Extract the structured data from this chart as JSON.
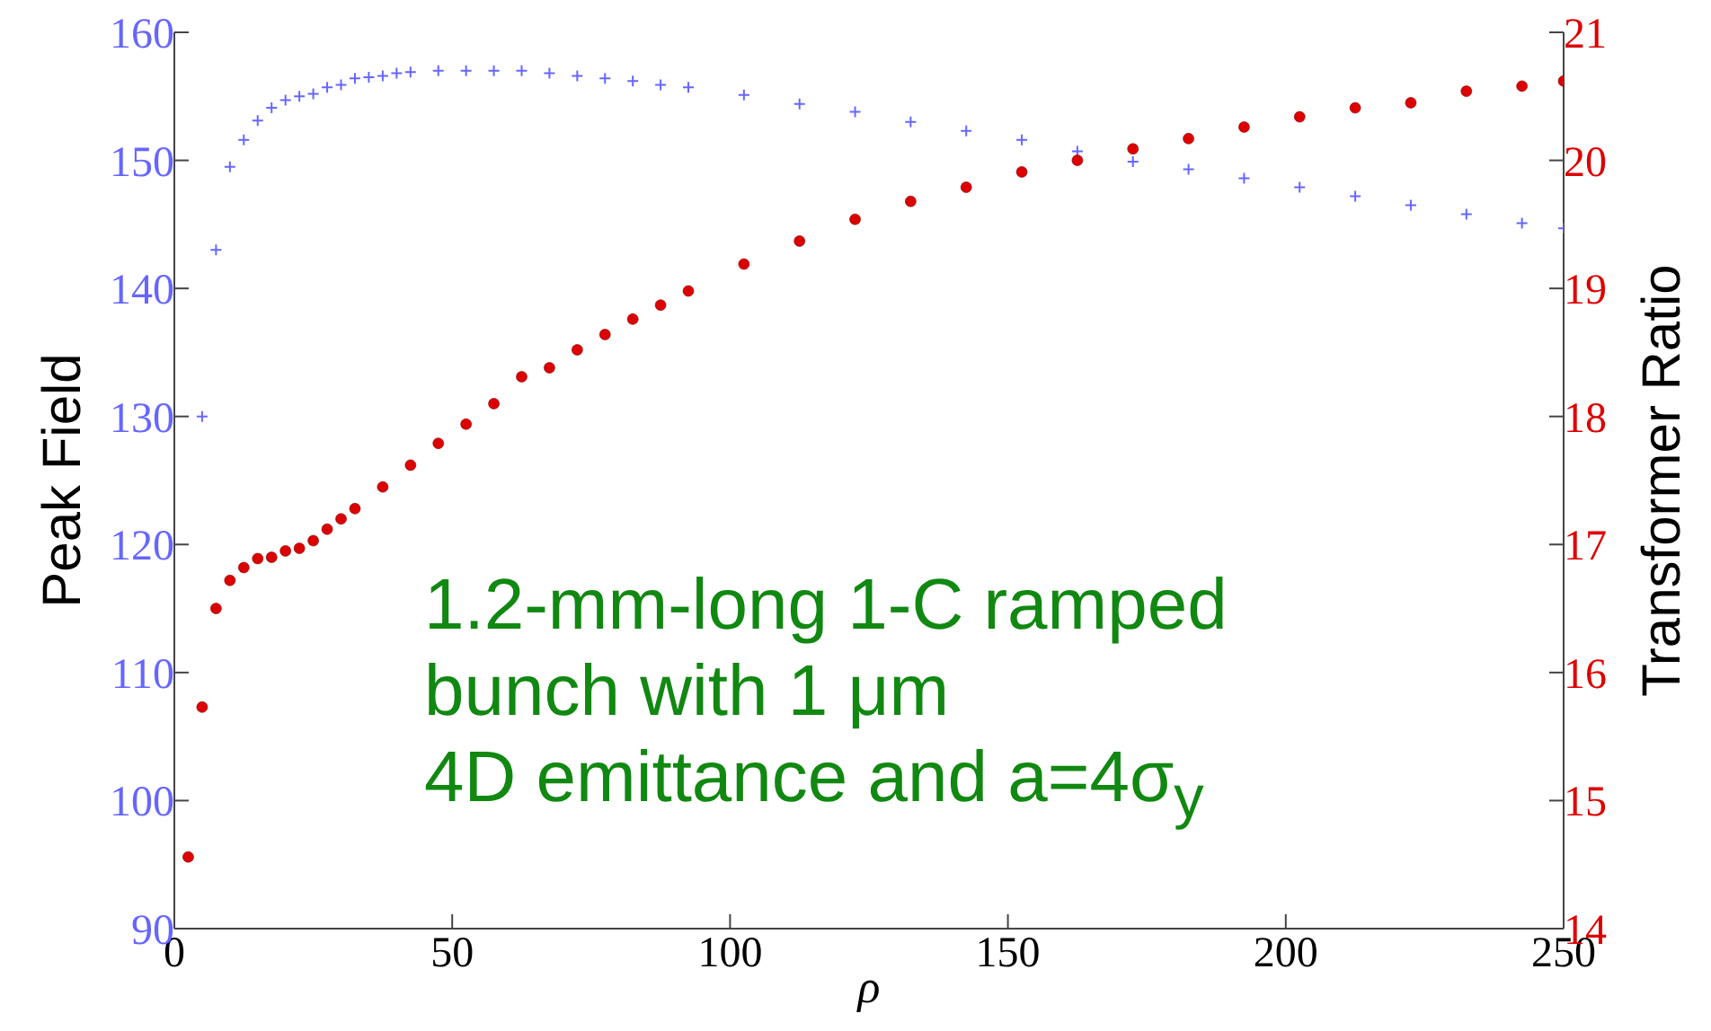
{
  "chart_data": {
    "type": "scatter",
    "xlabel": "ρ",
    "ylabel": "Peak Field",
    "y2label": "Transformer Ratio",
    "xlim": [
      0,
      250
    ],
    "xticks": [
      0,
      50,
      100,
      150,
      200,
      250
    ],
    "ylim": [
      90,
      160
    ],
    "yticks": [
      90,
      100,
      110,
      120,
      130,
      140,
      150,
      160
    ],
    "y2lim": [
      14,
      21
    ],
    "y2ticks": [
      14,
      15,
      16,
      17,
      18,
      19,
      20,
      21
    ],
    "grid": false,
    "legend": false,
    "annotations": [
      "1.2-mm-long 1-C ramped\nbunch with 1 μm\n4D emittance and a=4σ$_{y}$"
    ],
    "series": [
      {
        "color": "#6666ff",
        "marker": "cross",
        "x": [
          5,
          7.5,
          10,
          12.5,
          15,
          17.5,
          20,
          22.5,
          25,
          27.5,
          30,
          32.5,
          35,
          37.5,
          40,
          42.5,
          47.5,
          52.5,
          57.5,
          62.5,
          67.5,
          72.5,
          77.5,
          82.5,
          87.5,
          92.5,
          102.5,
          112.5,
          122.5,
          132.5,
          142.5,
          152.5,
          162.5,
          172.5,
          182.5,
          192.5,
          202.5,
          212.5,
          222.5,
          232.5,
          242.5,
          250
        ],
        "values": [
          130,
          143,
          149.5,
          151.6,
          153.1,
          154.1,
          154.7,
          155,
          155.2,
          155.7,
          155.9,
          156.4,
          156.5,
          156.6,
          156.8,
          156.9,
          157,
          157,
          157,
          157,
          156.8,
          156.6,
          156.4,
          156.2,
          155.9,
          155.7,
          155.1,
          154.4,
          153.8,
          153,
          152.3,
          151.6,
          150.7,
          149.9,
          149.3,
          148.6,
          147.9,
          147.2,
          146.5,
          145.8,
          145.1,
          144.7
        ]
      },
      {
        "color": "#dd0000",
        "marker": "circle",
        "axis": "y2",
        "x": [
          2.5,
          5,
          7.5,
          10,
          12.5,
          15,
          17.5,
          20,
          22.5,
          25,
          27.5,
          30,
          32.5,
          37.5,
          42.5,
          47.5,
          52.5,
          57.5,
          62.5,
          67.5,
          72.5,
          77.5,
          82.5,
          87.5,
          92.5,
          102.5,
          112.5,
          122.5,
          132.5,
          142.5,
          152.5,
          162.5,
          172.5,
          182.5,
          192.5,
          202.5,
          212.5,
          222.5,
          232.5,
          242.5,
          250
        ],
        "values": [
          14.56,
          15.73,
          16.5,
          16.72,
          16.82,
          16.89,
          16.9,
          16.95,
          16.97,
          17.03,
          17.12,
          17.2,
          17.28,
          17.45,
          17.62,
          17.79,
          17.94,
          18.1,
          18.31,
          18.38,
          18.52,
          18.64,
          18.76,
          18.87,
          18.98,
          19.19,
          19.37,
          19.54,
          19.68,
          19.79,
          19.91,
          20,
          20.09,
          20.17,
          20.26,
          20.34,
          20.41,
          20.45,
          20.54,
          20.58,
          20.62
        ]
      }
    ]
  }
}
